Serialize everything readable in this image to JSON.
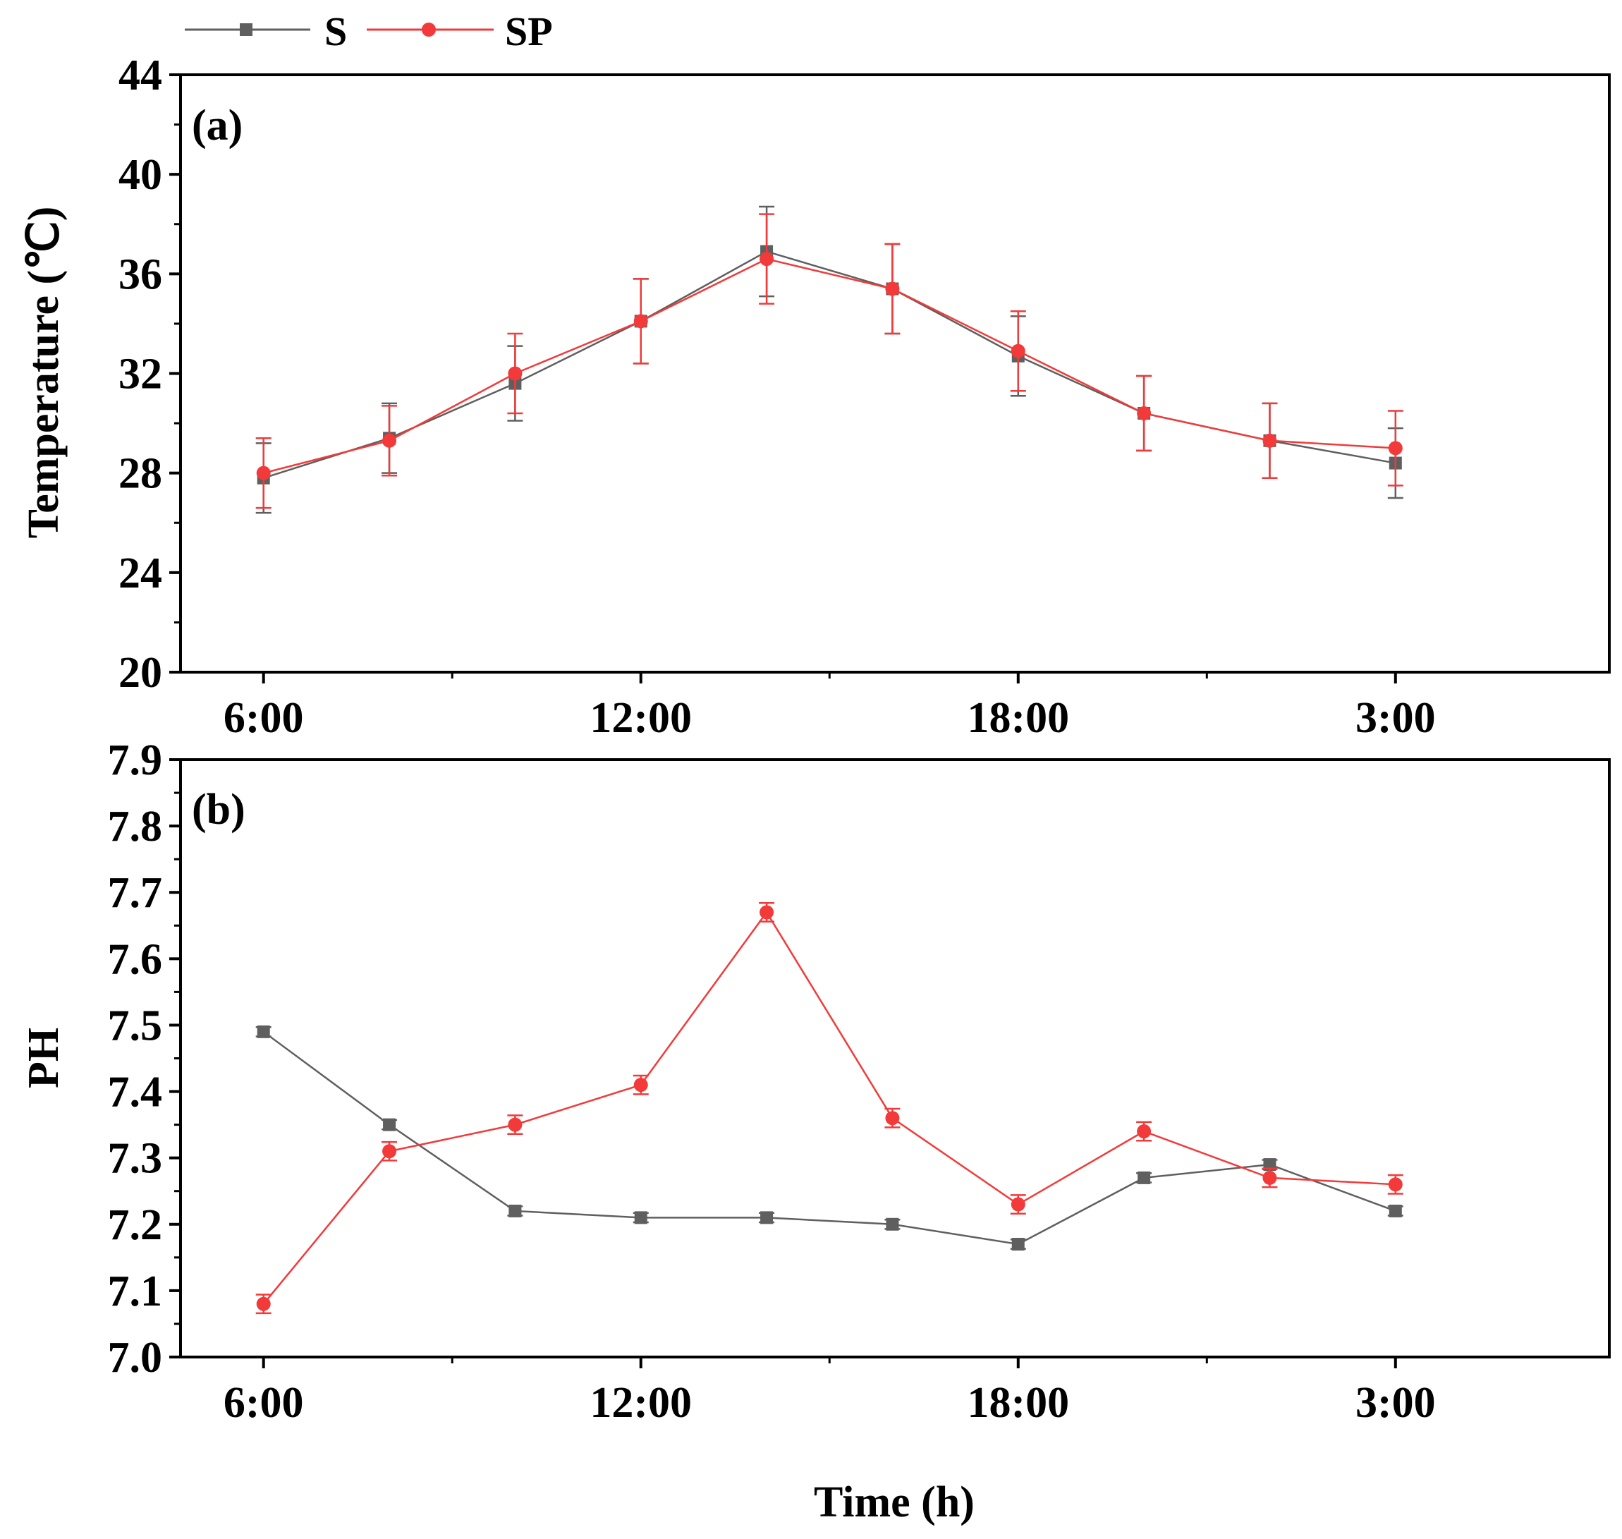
{
  "legend": [
    {
      "name": "S",
      "color": "#5f5f5f",
      "marker": "square"
    },
    {
      "name": "SP",
      "color": "#f23a3a",
      "marker": "circle"
    }
  ],
  "xlabel": "Time (h)",
  "chart_data": [
    {
      "type": "line",
      "panel_label": "(a)",
      "ylabel": "Temperature (℃)",
      "ylim": [
        20,
        44
      ],
      "yticks": [
        "20",
        "24",
        "28",
        "32",
        "36",
        "40",
        "44"
      ],
      "xtick_labels": [
        "6:00",
        "12:00",
        "18:00",
        "3:00"
      ],
      "x": [
        1,
        2,
        3,
        4,
        5,
        6,
        7,
        8,
        9,
        10
      ],
      "xlim": [
        0.34,
        11.7
      ],
      "series": [
        {
          "name": "S",
          "color": "#5f5f5f",
          "values": [
            27.8,
            29.4,
            31.6,
            34.1,
            36.9,
            35.4,
            32.7,
            30.4,
            29.3,
            28.4
          ],
          "errors": [
            1.4,
            1.4,
            1.5,
            1.7,
            1.8,
            1.8,
            1.6,
            1.5,
            1.5,
            1.4
          ]
        },
        {
          "name": "SP",
          "color": "#f23a3a",
          "values": [
            28.0,
            29.3,
            32.0,
            34.1,
            36.6,
            35.4,
            32.9,
            30.4,
            29.3,
            29.0
          ],
          "errors": [
            1.4,
            1.4,
            1.6,
            1.7,
            1.8,
            1.8,
            1.6,
            1.5,
            1.5,
            1.5
          ]
        }
      ]
    },
    {
      "type": "line",
      "panel_label": "(b)",
      "ylabel": "PH",
      "ylim": [
        7.0,
        7.9
      ],
      "yticks": [
        "7.0",
        "7.1",
        "7.2",
        "7.3",
        "7.4",
        "7.5",
        "7.6",
        "7.7",
        "7.8",
        "7.9"
      ],
      "xtick_labels": [
        "6:00",
        "12:00",
        "18:00",
        "3:00"
      ],
      "x": [
        1,
        2,
        3,
        4,
        5,
        6,
        7,
        8,
        9,
        10
      ],
      "xlim": [
        0.34,
        11.7
      ],
      "series": [
        {
          "name": "S",
          "color": "#5f5f5f",
          "values": [
            7.49,
            7.35,
            7.22,
            7.21,
            7.21,
            7.2,
            7.17,
            7.27,
            7.29,
            7.22
          ],
          "errors": [
            0.007,
            0.007,
            0.007,
            0.007,
            0.007,
            0.007,
            0.007,
            0.007,
            0.007,
            0.007
          ]
        },
        {
          "name": "SP",
          "color": "#f23a3a",
          "values": [
            7.08,
            7.31,
            7.35,
            7.41,
            7.67,
            7.36,
            7.23,
            7.34,
            7.27,
            7.26
          ],
          "errors": [
            0.014,
            0.014,
            0.014,
            0.014,
            0.014,
            0.014,
            0.014,
            0.014,
            0.014,
            0.014
          ]
        }
      ]
    }
  ]
}
